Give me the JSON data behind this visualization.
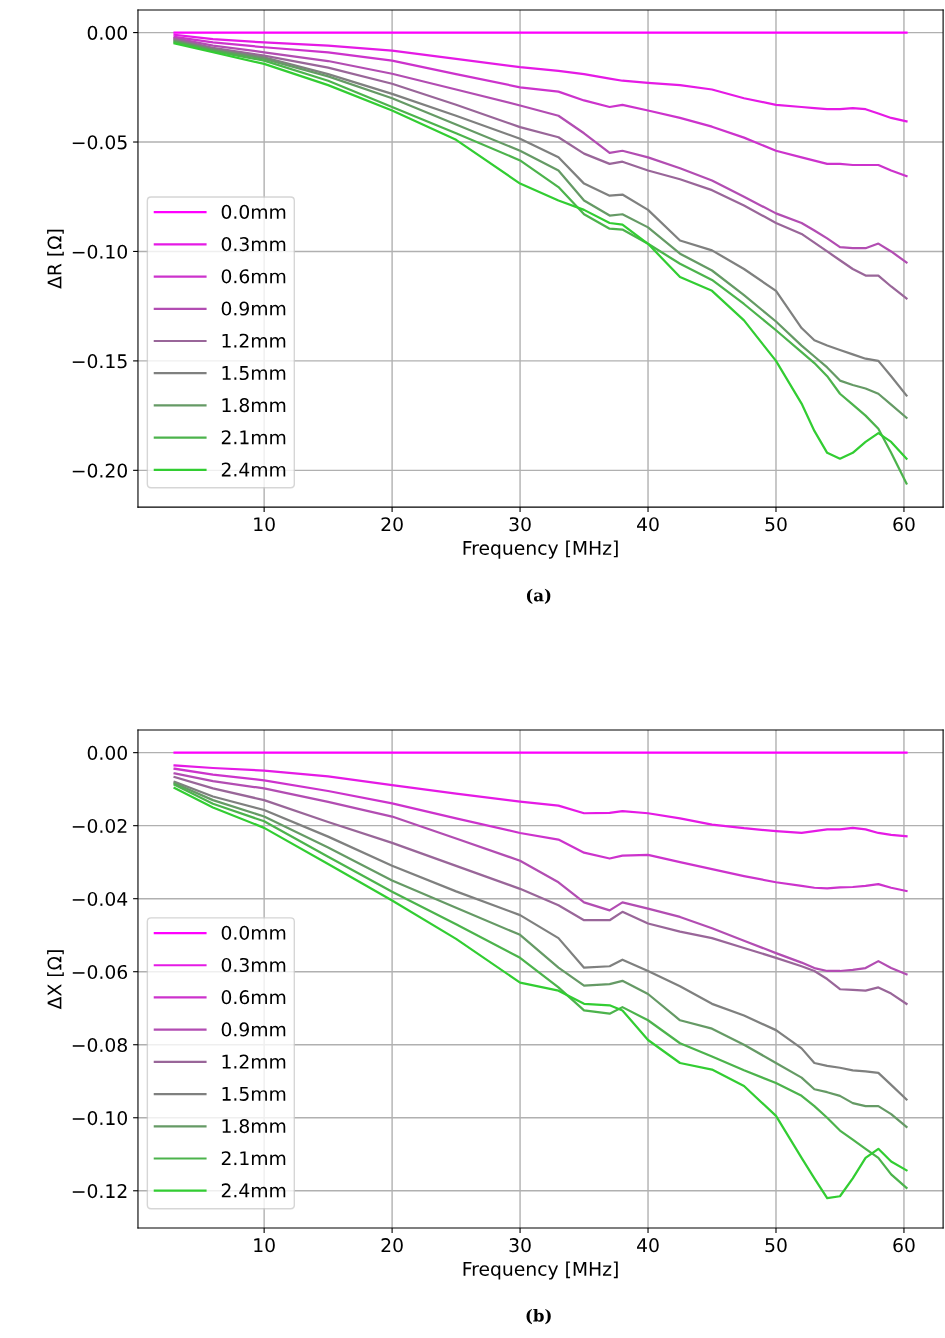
{
  "chart_data": [
    {
      "type": "line",
      "xlabel": "Frequency [MHz]",
      "ylabel": "ΔR [Ω]",
      "annotations": [
        "(a)"
      ],
      "legend": "lower left",
      "grid": true,
      "x": [
        3,
        6,
        10,
        15,
        20,
        25,
        30,
        33,
        35,
        37,
        38,
        40,
        42.5,
        45,
        47.5,
        50,
        52,
        53,
        54,
        55,
        56,
        57,
        58,
        59,
        60.2
      ],
      "xlim": [
        0.14,
        63.06
      ],
      "xticks": [
        10,
        20,
        30,
        40,
        50,
        60
      ],
      "ylim": [
        -0.2168,
        0.0103
      ],
      "yticks": [
        {
          "value": -0.2,
          "label": "−0.20"
        },
        {
          "value": -0.15,
          "label": "−0.15"
        },
        {
          "value": -0.1,
          "label": "−0.10"
        },
        {
          "value": -0.05,
          "label": "−0.05"
        },
        {
          "value": 0,
          "label": "0.00"
        }
      ],
      "series": [
        {
          "name": "0.0mm",
          "color": "#ff00ff",
          "values": [
            0,
            0,
            0,
            0,
            0,
            0,
            0,
            0,
            0,
            0,
            0,
            0,
            0,
            0,
            0,
            0,
            0,
            0,
            0,
            0,
            0,
            0,
            0,
            0,
            0
          ]
        },
        {
          "name": "0.3mm",
          "color": "#e51ae5",
          "values": [
            -0.001,
            -0.003,
            -0.0045,
            -0.006,
            -0.0082,
            -0.012,
            -0.0158,
            -0.0175,
            -0.019,
            -0.021,
            -0.022,
            -0.023,
            -0.024,
            -0.026,
            -0.03,
            -0.033,
            -0.034,
            -0.0345,
            -0.035,
            -0.035,
            -0.0345,
            -0.035,
            -0.037,
            -0.039,
            -0.0406
          ]
        },
        {
          "name": "0.6mm",
          "color": "#cc33cc",
          "values": [
            -0.002,
            -0.0045,
            -0.0067,
            -0.009,
            -0.0128,
            -0.019,
            -0.025,
            -0.027,
            -0.031,
            -0.034,
            -0.033,
            -0.0356,
            -0.039,
            -0.043,
            -0.048,
            -0.054,
            -0.057,
            -0.0585,
            -0.06,
            -0.06,
            -0.0605,
            -0.0605,
            -0.0605,
            -0.063,
            -0.0656
          ]
        },
        {
          "name": "0.9mm",
          "color": "#b24db2",
          "values": [
            -0.0025,
            -0.006,
            -0.009,
            -0.013,
            -0.0188,
            -0.026,
            -0.0333,
            -0.038,
            -0.046,
            -0.055,
            -0.054,
            -0.057,
            -0.062,
            -0.0676,
            -0.075,
            -0.0826,
            -0.087,
            -0.0904,
            -0.094,
            -0.098,
            -0.0985,
            -0.0985,
            -0.0964,
            -0.1,
            -0.105
          ]
        },
        {
          "name": "1.2mm",
          "color": "#996699",
          "values": [
            -0.003,
            -0.007,
            -0.0105,
            -0.016,
            -0.0234,
            -0.033,
            -0.0432,
            -0.0478,
            -0.0553,
            -0.06,
            -0.059,
            -0.063,
            -0.067,
            -0.072,
            -0.079,
            -0.087,
            -0.092,
            -0.096,
            -0.1,
            -0.104,
            -0.108,
            -0.111,
            -0.111,
            -0.116,
            -0.1215
          ]
        },
        {
          "name": "1.5mm",
          "color": "#7f807f",
          "values": [
            -0.0035,
            -0.0075,
            -0.0113,
            -0.019,
            -0.028,
            -0.038,
            -0.0485,
            -0.057,
            -0.069,
            -0.0745,
            -0.074,
            -0.081,
            -0.095,
            -0.0995,
            -0.108,
            -0.118,
            -0.135,
            -0.1406,
            -0.143,
            -0.145,
            -0.147,
            -0.149,
            -0.15,
            -0.157,
            -0.1658
          ]
        },
        {
          "name": "1.8mm",
          "color": "#659a65",
          "values": [
            -0.004,
            -0.008,
            -0.012,
            -0.02,
            -0.03,
            -0.042,
            -0.054,
            -0.063,
            -0.0767,
            -0.0836,
            -0.083,
            -0.089,
            -0.101,
            -0.1087,
            -0.12,
            -0.132,
            -0.143,
            -0.148,
            -0.153,
            -0.159,
            -0.161,
            -0.1626,
            -0.165,
            -0.17,
            -0.176
          ]
        },
        {
          "name": "2.1mm",
          "color": "#4cb34c",
          "values": [
            -0.0045,
            -0.0085,
            -0.0128,
            -0.022,
            -0.034,
            -0.046,
            -0.0584,
            -0.0706,
            -0.083,
            -0.0896,
            -0.09,
            -0.0965,
            -0.1056,
            -0.113,
            -0.124,
            -0.136,
            -0.146,
            -0.151,
            -0.157,
            -0.165,
            -0.17,
            -0.175,
            -0.181,
            -0.192,
            -0.206
          ]
        },
        {
          "name": "2.4mm",
          "color": "#32cd32",
          "values": [
            -0.005,
            -0.009,
            -0.0143,
            -0.024,
            -0.0356,
            -0.049,
            -0.069,
            -0.0767,
            -0.081,
            -0.087,
            -0.0877,
            -0.0965,
            -0.1117,
            -0.118,
            -0.1315,
            -0.15,
            -0.1695,
            -0.182,
            -0.192,
            -0.1947,
            -0.192,
            -0.187,
            -0.183,
            -0.187,
            -0.1947
          ]
        }
      ]
    },
    {
      "type": "line",
      "xlabel": "Frequency [MHz]",
      "ylabel": "ΔX [Ω]",
      "annotations": [
        "(b)"
      ],
      "legend": "lower left",
      "grid": true,
      "x": [
        3,
        6,
        10,
        15,
        20,
        25,
        30,
        33,
        35,
        37,
        38,
        40,
        42.5,
        45,
        47.5,
        50,
        52,
        53,
        54,
        55,
        56,
        57,
        58,
        59,
        60.2
      ],
      "xlim": [
        0.14,
        63.06
      ],
      "xticks": [
        10,
        20,
        30,
        40,
        50,
        60
      ],
      "ylim": [
        -0.1302,
        0.0062
      ],
      "yticks": [
        {
          "value": -0.12,
          "label": "−0.12"
        },
        {
          "value": -0.1,
          "label": "−0.10"
        },
        {
          "value": -0.08,
          "label": "−0.08"
        },
        {
          "value": -0.06,
          "label": "−0.06"
        },
        {
          "value": -0.04,
          "label": "−0.04"
        },
        {
          "value": -0.02,
          "label": "−0.02"
        },
        {
          "value": 0,
          "label": "0.00"
        }
      ],
      "series": [
        {
          "name": "0.0mm",
          "color": "#ff00ff",
          "values": [
            0,
            0,
            0,
            0,
            0,
            0,
            0,
            0,
            0,
            0,
            0,
            0,
            0,
            0,
            0,
            0,
            0,
            0,
            0,
            0,
            0,
            0,
            0,
            0,
            0
          ]
        },
        {
          "name": "0.3mm",
          "color": "#e51ae5",
          "values": [
            -0.0035,
            -0.0042,
            -0.0049,
            -0.0065,
            -0.0089,
            -0.0112,
            -0.0134,
            -0.0145,
            -0.0166,
            -0.0165,
            -0.016,
            -0.0166,
            -0.018,
            -0.0197,
            -0.0207,
            -0.0215,
            -0.022,
            -0.0215,
            -0.021,
            -0.021,
            -0.0206,
            -0.021,
            -0.022,
            -0.0225,
            -0.0229
          ]
        },
        {
          "name": "0.6mm",
          "color": "#cc33cc",
          "values": [
            -0.0044,
            -0.006,
            -0.0076,
            -0.0105,
            -0.0139,
            -0.018,
            -0.022,
            -0.0238,
            -0.0274,
            -0.029,
            -0.0282,
            -0.028,
            -0.03,
            -0.0319,
            -0.0338,
            -0.0355,
            -0.0365,
            -0.037,
            -0.0372,
            -0.0369,
            -0.0368,
            -0.0365,
            -0.036,
            -0.037,
            -0.0379
          ]
        },
        {
          "name": "0.9mm",
          "color": "#b24db2",
          "values": [
            -0.0057,
            -0.0078,
            -0.0098,
            -0.0135,
            -0.0175,
            -0.0235,
            -0.0296,
            -0.0355,
            -0.041,
            -0.0432,
            -0.041,
            -0.0427,
            -0.045,
            -0.0481,
            -0.0515,
            -0.0549,
            -0.0575,
            -0.059,
            -0.0598,
            -0.0598,
            -0.0595,
            -0.059,
            -0.0571,
            -0.059,
            -0.0607
          ]
        },
        {
          "name": "1.2mm",
          "color": "#996699",
          "values": [
            -0.0067,
            -0.0098,
            -0.013,
            -0.019,
            -0.0247,
            -0.031,
            -0.0373,
            -0.0418,
            -0.0459,
            -0.0459,
            -0.0436,
            -0.0468,
            -0.049,
            -0.0508,
            -0.0535,
            -0.0562,
            -0.0585,
            -0.0598,
            -0.062,
            -0.0648,
            -0.065,
            -0.0652,
            -0.0643,
            -0.066,
            -0.0688
          ]
        },
        {
          "name": "1.5mm",
          "color": "#7f807f",
          "values": [
            -0.008,
            -0.012,
            -0.0157,
            -0.023,
            -0.031,
            -0.038,
            -0.0445,
            -0.0508,
            -0.0589,
            -0.0585,
            -0.0567,
            -0.0598,
            -0.064,
            -0.0688,
            -0.072,
            -0.076,
            -0.081,
            -0.085,
            -0.0858,
            -0.0863,
            -0.087,
            -0.0873,
            -0.0877,
            -0.091,
            -0.095
          ]
        },
        {
          "name": "1.8mm",
          "color": "#659a65",
          "values": [
            -0.0084,
            -0.013,
            -0.0175,
            -0.026,
            -0.035,
            -0.0425,
            -0.0499,
            -0.0589,
            -0.0638,
            -0.0634,
            -0.0625,
            -0.0661,
            -0.0733,
            -0.0756,
            -0.08,
            -0.085,
            -0.089,
            -0.0922,
            -0.093,
            -0.094,
            -0.096,
            -0.0968,
            -0.0968,
            -0.099,
            -0.1025
          ]
        },
        {
          "name": "2.1mm",
          "color": "#4cb34c",
          "values": [
            -0.0088,
            -0.014,
            -0.0188,
            -0.0285,
            -0.0381,
            -0.047,
            -0.0562,
            -0.0643,
            -0.0706,
            -0.0715,
            -0.0697,
            -0.0733,
            -0.0796,
            -0.0832,
            -0.087,
            -0.0905,
            -0.094,
            -0.0968,
            -0.1,
            -0.1035,
            -0.106,
            -0.1085,
            -0.111,
            -0.1155,
            -0.1192
          ]
        },
        {
          "name": "2.4mm",
          "color": "#32cd32",
          "values": [
            -0.0097,
            -0.015,
            -0.0206,
            -0.0305,
            -0.0405,
            -0.051,
            -0.063,
            -0.0652,
            -0.0688,
            -0.0692,
            -0.0706,
            -0.0787,
            -0.085,
            -0.0868,
            -0.0913,
            -0.0995,
            -0.111,
            -0.1166,
            -0.122,
            -0.1215,
            -0.1166,
            -0.111,
            -0.1085,
            -0.112,
            -0.1144
          ]
        }
      ]
    }
  ]
}
